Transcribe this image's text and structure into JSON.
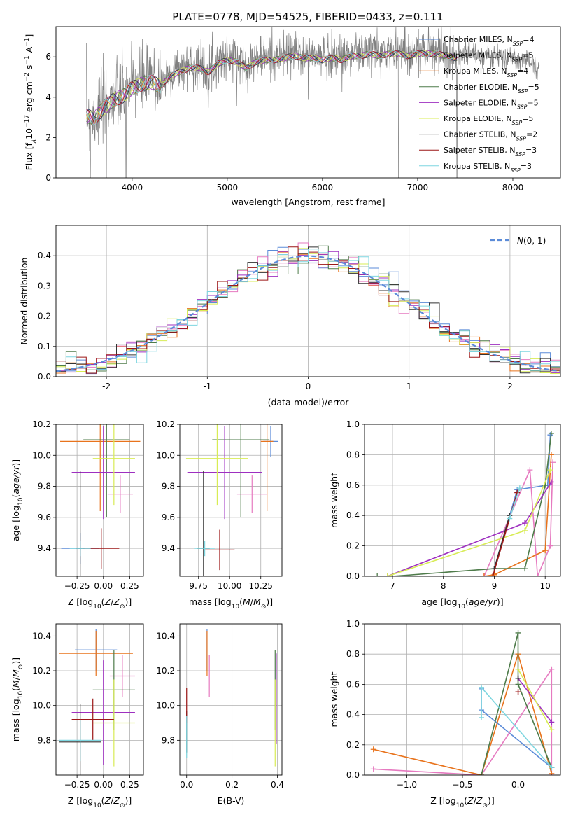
{
  "figure": {
    "title": "PLATE=0778, MJD=54525, FIBERID=0433, z=0.111"
  },
  "colors": {
    "Chabrier MILES": "#5b8bd8",
    "Salpeter MILES": "#e67ac0",
    "Kroupa MILES": "#e8731c",
    "Chabrier ELODIE": "#4e7b4a",
    "Salpeter ELODIE": "#9e2fc0",
    "Kroupa ELODIE": "#d8ec55",
    "Chabrier STELIB": "#333333",
    "Salpeter STELIB": "#9c1616",
    "Kroupa STELIB": "#7ed6e0",
    "data": "#808080",
    "normal": "#5b8bd8"
  },
  "chart_data": [
    {
      "id": "spectrum",
      "type": "line",
      "title": "PLATE=0778, MJD=54525, FIBERID=0433, z=0.111",
      "xlabel": "wavelength [Angstrom, rest frame]",
      "ylabel_parts": [
        "Flux [f",
        "λ",
        "10",
        "−17",
        " erg cm",
        "−2",
        " s",
        "−1",
        " A",
        "−1",
        "]"
      ],
      "xlim": [
        3200,
        8500
      ],
      "ylim": [
        0,
        7.5
      ],
      "xticks": [
        4000,
        5000,
        6000,
        7000,
        8000
      ],
      "yticks": [
        0,
        2,
        4,
        6
      ],
      "legend_position": "top-right",
      "legend": [
        {
          "label": "Chabrier MILES, N",
          "sub": "SSP",
          "eq": "=4",
          "model": "Chabrier MILES"
        },
        {
          "label": "Salpeter MILES, N",
          "sub": "SSP",
          "eq": "=5",
          "model": "Salpeter MILES"
        },
        {
          "label": "Kroupa MILES, N",
          "sub": "SSP",
          "eq": "=4",
          "model": "Kroupa MILES"
        },
        {
          "label": "Chabrier ELODIE, N",
          "sub": "SSP",
          "eq": "=5",
          "model": "Chabrier ELODIE"
        },
        {
          "label": "Salpeter ELODIE, N",
          "sub": "SSP",
          "eq": "=5",
          "model": "Salpeter ELODIE"
        },
        {
          "label": "Kroupa ELODIE, N",
          "sub": "SSP",
          "eq": "=5",
          "model": "Kroupa ELODIE"
        },
        {
          "label": "Chabrier STELIB, N",
          "sub": "SSP",
          "eq": "=2",
          "model": "Chabrier STELIB"
        },
        {
          "label": "Salpeter STELIB, N",
          "sub": "SSP",
          "eq": "=3",
          "model": "Salpeter STELIB"
        },
        {
          "label": "Kroupa STELIB, N",
          "sub": "SSP",
          "eq": "=3",
          "model": "Kroupa STELIB"
        }
      ],
      "continuum": [
        [
          3540,
          3.2
        ],
        [
          3600,
          3.1
        ],
        [
          3700,
          3.6
        ],
        [
          3800,
          4.0
        ],
        [
          3900,
          4.2
        ],
        [
          4000,
          4.6
        ],
        [
          4100,
          4.8
        ],
        [
          4200,
          4.9
        ],
        [
          4300,
          4.7
        ],
        [
          4400,
          5.2
        ],
        [
          4500,
          5.4
        ],
        [
          4600,
          5.6
        ],
        [
          4700,
          5.6
        ],
        [
          4800,
          5.4
        ],
        [
          4900,
          5.8
        ],
        [
          5000,
          6.0
        ],
        [
          5100,
          5.9
        ],
        [
          5200,
          5.6
        ],
        [
          5300,
          5.9
        ],
        [
          5400,
          6.0
        ],
        [
          5500,
          6.0
        ],
        [
          5600,
          6.1
        ],
        [
          5700,
          6.2
        ],
        [
          5800,
          6.1
        ],
        [
          5900,
          6.1
        ],
        [
          6000,
          6.0
        ],
        [
          6100,
          6.1
        ],
        [
          6200,
          6.0
        ],
        [
          6300,
          6.2
        ],
        [
          6400,
          6.2
        ],
        [
          6500,
          6.3
        ],
        [
          6600,
          6.2
        ],
        [
          6700,
          6.3
        ],
        [
          6800,
          6.3
        ],
        [
          6900,
          6.2
        ],
        [
          7000,
          6.3
        ],
        [
          7100,
          6.3
        ],
        [
          7200,
          6.3
        ],
        [
          7300,
          6.2
        ],
        [
          7400,
          6.1
        ],
        [
          7500,
          6.2
        ],
        [
          7600,
          6.1
        ],
        [
          7700,
          6.0
        ],
        [
          7800,
          6.0
        ],
        [
          7900,
          5.9
        ],
        [
          8000,
          6.0
        ],
        [
          8100,
          5.7
        ],
        [
          8200,
          5.8
        ],
        [
          8250,
          5.6
        ]
      ],
      "data_range": [
        3520,
        8280
      ],
      "model_range": [
        3520,
        7420
      ],
      "dips": [
        {
          "x": 3560,
          "y": 0.0
        },
        {
          "x": 3730,
          "y": 0.0
        },
        {
          "x": 3935,
          "y": 0.0
        },
        {
          "x": 6800,
          "y": 0.0
        },
        {
          "x": 7412,
          "y": 0.0
        }
      ]
    },
    {
      "id": "residuals",
      "type": "histogram",
      "xlabel": "(data-model)/error",
      "ylabel": "Normed distribution",
      "xlim": [
        -2.5,
        2.5
      ],
      "ylim": [
        0,
        0.5
      ],
      "xticks": [
        -2,
        -1,
        0,
        1,
        2
      ],
      "yticks": [
        0.0,
        0.1,
        0.2,
        0.3,
        0.4
      ],
      "grid": true,
      "legend_position": "top-right",
      "legend_label": "N(0, 1)",
      "bin_width": 0.1,
      "bin_start": -2.5
    },
    {
      "id": "age-vs-Z",
      "type": "errorbar",
      "xlabel": "Z [log10(Z/Z⊙)]",
      "ylabel": "age [log10(age/yr)]",
      "xlim": [
        -0.45,
        0.38
      ],
      "ylim": [
        9.22,
        10.2
      ],
      "xticks": [
        -0.25,
        0.0,
        0.25
      ],
      "xtick_labels": [
        "−0.25",
        "0.00",
        "0.25"
      ],
      "yticks": [
        9.4,
        9.6,
        9.8,
        10.0,
        10.2
      ],
      "grid": true,
      "points": [
        {
          "model": "Chabrier MILES",
          "x": -0.22,
          "xerr": 0.18,
          "y": 9.4,
          "yerr": 0.1
        },
        {
          "model": "Salpeter MILES",
          "x": 0.16,
          "xerr": 0.12,
          "y": 9.75,
          "yerr": 0.12
        },
        {
          "model": "Kroupa MILES",
          "x": -0.03,
          "xerr": 0.38,
          "y": 10.09,
          "yerr": 0.45
        },
        {
          "model": "Chabrier ELODIE",
          "x": 0.03,
          "xerr": 0.22,
          "y": 10.1,
          "yerr": 0.5
        },
        {
          "model": "Salpeter ELODIE",
          "x": 0.0,
          "xerr": 0.3,
          "y": 9.89,
          "yerr": 0.3
        },
        {
          "model": "Kroupa ELODIE",
          "x": 0.1,
          "xerr": 0.2,
          "y": 9.98,
          "yerr": 0.3
        },
        {
          "model": "Chabrier STELIB",
          "x": -0.22,
          "xerr": 0.04,
          "y": 9.4,
          "yerr": 0.5
        },
        {
          "model": "Salpeter STELIB",
          "x": -0.02,
          "xerr": 0.17,
          "y": 9.4,
          "yerr": 0.13
        },
        {
          "model": "Kroupa STELIB",
          "x": -0.22,
          "xerr": 0.1,
          "y": 9.4,
          "yerr": 0.05
        }
      ]
    },
    {
      "id": "age-vs-mass",
      "type": "errorbar",
      "xlabel": "mass [log10(M/M⊙)]",
      "xlim": [
        9.6,
        10.42
      ],
      "ylim": [
        9.22,
        10.2
      ],
      "xticks": [
        9.75,
        10.0,
        10.25
      ],
      "xtick_labels": [
        "9.75",
        "10.00",
        "10.25"
      ],
      "yticks": [
        9.4,
        9.6,
        9.8,
        10.0,
        10.2
      ],
      "grid": true,
      "points": [
        {
          "model": "Chabrier MILES",
          "x": 10.33,
          "xerr": 0.06,
          "y": 10.09,
          "yerr": 0.1
        },
        {
          "model": "Salpeter MILES",
          "x": 10.18,
          "xerr": 0.12,
          "y": 9.75,
          "yerr": 0.12
        },
        {
          "model": "Kroupa MILES",
          "x": 10.3,
          "xerr": 0.05,
          "y": 10.09,
          "yerr": 0.45
        },
        {
          "model": "Chabrier ELODIE",
          "x": 10.09,
          "xerr": 0.23,
          "y": 10.1,
          "yerr": 0.5
        },
        {
          "model": "Salpeter ELODIE",
          "x": 9.96,
          "xerr": 0.3,
          "y": 9.89,
          "yerr": 0.3
        },
        {
          "model": "Kroupa ELODIE",
          "x": 9.9,
          "xerr": 0.25,
          "y": 9.98,
          "yerr": 0.3
        },
        {
          "model": "Chabrier STELIB",
          "x": 9.79,
          "xerr": 0.05,
          "y": 9.4,
          "yerr": 0.5
        },
        {
          "model": "Salpeter STELIB",
          "x": 9.92,
          "xerr": 0.12,
          "y": 9.39,
          "yerr": 0.13
        },
        {
          "model": "Kroupa STELIB",
          "x": 9.8,
          "xerr": 0.08,
          "y": 9.4,
          "yerr": 0.05
        }
      ]
    },
    {
      "id": "mass-weight-vs-age",
      "type": "line",
      "xlabel": "age [log10(age/yr)]",
      "ylabel": "mass weight",
      "xlim": [
        6.45,
        10.3
      ],
      "ylim": [
        0.0,
        1.0
      ],
      "xticks": [
        7,
        8,
        9,
        10
      ],
      "yticks": [
        0.0,
        0.2,
        0.4,
        0.6,
        0.8,
        1.0
      ],
      "grid": true,
      "series": [
        {
          "model": "Chabrier MILES",
          "points": [
            [
              9.0,
              0.05
            ],
            [
              9.45,
              0.57
            ],
            [
              10.05,
              0.6
            ],
            [
              10.1,
              0.93
            ]
          ]
        },
        {
          "model": "Salpeter MILES",
          "points": [
            [
              8.8,
              0.0
            ],
            [
              9.7,
              0.7
            ],
            [
              9.85,
              0.0
            ],
            [
              10.1,
              0.2
            ],
            [
              10.15,
              0.75
            ]
          ]
        },
        {
          "model": "Kroupa MILES",
          "points": [
            [
              8.8,
              0.0
            ],
            [
              9.0,
              0.01
            ],
            [
              10.0,
              0.17
            ],
            [
              10.12,
              0.8
            ]
          ]
        },
        {
          "model": "Chabrier ELODIE",
          "points": [
            [
              6.7,
              0.0
            ],
            [
              7.0,
              0.0
            ],
            [
              9.0,
              0.05
            ],
            [
              9.6,
              0.05
            ],
            [
              10.0,
              0.6
            ],
            [
              10.12,
              0.94
            ]
          ]
        },
        {
          "model": "Salpeter ELODIE",
          "points": [
            [
              6.9,
              0.0
            ],
            [
              9.6,
              0.35
            ],
            [
              10.12,
              0.62
            ]
          ]
        },
        {
          "model": "Kroupa ELODIE",
          "points": [
            [
              6.9,
              0.0
            ],
            [
              9.6,
              0.3
            ],
            [
              10.1,
              0.7
            ]
          ]
        },
        {
          "model": "Chabrier STELIB",
          "points": [
            [
              9.0,
              0.05
            ],
            [
              9.3,
              0.4
            ]
          ]
        },
        {
          "model": "Salpeter STELIB",
          "points": [
            [
              8.97,
              0.0
            ],
            [
              9.45,
              0.55
            ]
          ]
        },
        {
          "model": "Kroupa STELIB",
          "points": [
            [
              9.3,
              0.38
            ],
            [
              9.5,
              0.58
            ]
          ]
        }
      ]
    },
    {
      "id": "mass-vs-Z",
      "type": "errorbar",
      "xlabel": "Z [log10(Z/Z⊙)]",
      "ylabel": "mass [log10(M/M⊙)]",
      "xlim": [
        -0.45,
        0.38
      ],
      "ylim": [
        9.6,
        10.47
      ],
      "xticks": [
        -0.25,
        0.0,
        0.25
      ],
      "xtick_labels": [
        "−0.25",
        "0.00",
        "0.25"
      ],
      "yticks": [
        9.8,
        10.0,
        10.2,
        10.4
      ],
      "grid": true,
      "points": [
        {
          "model": "Chabrier MILES",
          "x": -0.07,
          "xerr": 0.2,
          "y": 10.32,
          "yerr": 0.12
        },
        {
          "model": "Salpeter MILES",
          "x": 0.18,
          "xerr": 0.12,
          "y": 10.17,
          "yerr": 0.12
        },
        {
          "model": "Kroupa MILES",
          "x": -0.07,
          "xerr": 0.35,
          "y": 10.3,
          "yerr": 0.13
        },
        {
          "model": "Chabrier ELODIE",
          "x": 0.1,
          "xerr": 0.2,
          "y": 10.09,
          "yerr": 0.23
        },
        {
          "model": "Salpeter ELODIE",
          "x": 0.0,
          "xerr": 0.3,
          "y": 9.96,
          "yerr": 0.3
        },
        {
          "model": "Kroupa ELODIE",
          "x": 0.1,
          "xerr": 0.2,
          "y": 9.9,
          "yerr": 0.25
        },
        {
          "model": "Chabrier STELIB",
          "x": -0.22,
          "xerr": 0.2,
          "y": 9.79,
          "yerr": 0.22
        },
        {
          "model": "Salpeter STELIB",
          "x": -0.1,
          "xerr": 0.2,
          "y": 9.92,
          "yerr": 0.12
        },
        {
          "model": "Kroupa STELIB",
          "x": -0.22,
          "xerr": 0.2,
          "y": 9.8,
          "yerr": 0.12
        }
      ]
    },
    {
      "id": "mass-vs-EBV",
      "type": "errorbar",
      "xlabel": "E(B-V)",
      "xlim": [
        -0.03,
        0.42
      ],
      "ylim": [
        9.6,
        10.47
      ],
      "xticks": [
        0.0,
        0.2,
        0.4
      ],
      "xtick_labels": [
        "0.0",
        "0.2",
        "0.4"
      ],
      "yticks": [
        9.8,
        10.0,
        10.2,
        10.4
      ],
      "grid": true,
      "points": [
        {
          "model": "Chabrier MILES",
          "x": 0.09,
          "xerr": 0.0,
          "y": 10.32,
          "yerr": 0.12
        },
        {
          "model": "Salpeter MILES",
          "x": 0.1,
          "xerr": 0.0,
          "y": 10.17,
          "yerr": 0.12
        },
        {
          "model": "Kroupa MILES",
          "x": 0.09,
          "xerr": 0.0,
          "y": 10.3,
          "yerr": 0.13
        },
        {
          "model": "Chabrier ELODIE",
          "x": 0.39,
          "xerr": 0.0,
          "y": 10.09,
          "yerr": 0.23
        },
        {
          "model": "Salpeter ELODIE",
          "x": 0.395,
          "xerr": 0.0,
          "y": 10.04,
          "yerr": 0.26
        },
        {
          "model": "Kroupa ELODIE",
          "x": 0.39,
          "xerr": 0.0,
          "y": 9.9,
          "yerr": 0.25
        },
        {
          "model": "Chabrier STELIB",
          "x": 0.0,
          "xerr": 0.0,
          "y": 9.85,
          "yerr": 0.12
        },
        {
          "model": "Salpeter STELIB",
          "x": 0.0,
          "xerr": 0.0,
          "y": 10.0,
          "yerr": 0.1
        },
        {
          "model": "Kroupa STELIB",
          "x": 0.0,
          "xerr": 0.0,
          "y": 9.82,
          "yerr": 0.12
        }
      ]
    },
    {
      "id": "mass-weight-vs-Z",
      "type": "line",
      "xlabel": "Z [log10(Z/Z⊙)]",
      "ylabel": "mass weight",
      "xlim": [
        -1.38,
        0.38
      ],
      "ylim": [
        0.0,
        1.0
      ],
      "xticks": [
        -1.0,
        -0.5,
        0.0
      ],
      "xtick_labels": [
        "−1.0",
        "−0.5",
        "0.0"
      ],
      "yticks": [
        0.0,
        0.2,
        0.4,
        0.6,
        0.8,
        1.0
      ],
      "grid": true,
      "series": [
        {
          "model": "Chabrier MILES",
          "points": [
            [
              -0.33,
              0.57
            ],
            [
              -0.33,
              0.43
            ],
            [
              0.3,
              0.05
            ]
          ]
        },
        {
          "model": "Salpeter MILES",
          "points": [
            [
              -1.3,
              0.04
            ],
            [
              -0.33,
              0.0
            ],
            [
              0.3,
              0.7
            ],
            [
              0.3,
              0.0
            ]
          ]
        },
        {
          "model": "Kroupa MILES",
          "points": [
            [
              -1.3,
              0.17
            ],
            [
              -0.33,
              0.0
            ],
            [
              0.0,
              0.8
            ],
            [
              0.3,
              0.01
            ]
          ]
        },
        {
          "model": "Chabrier ELODIE",
          "points": [
            [
              -0.33,
              0.0
            ],
            [
              0.0,
              0.94
            ],
            [
              0.0,
              0.6
            ],
            [
              0.3,
              0.05
            ]
          ]
        },
        {
          "model": "Salpeter ELODIE",
          "points": [
            [
              0.0,
              0.64
            ],
            [
              0.3,
              0.35
            ]
          ]
        },
        {
          "model": "Kroupa ELODIE",
          "points": [
            [
              0.0,
              0.7
            ],
            [
              0.3,
              0.3
            ]
          ]
        },
        {
          "model": "Chabrier STELIB",
          "points": [
            [
              0.0,
              0.64
            ],
            [
              0.0,
              0.64
            ]
          ]
        },
        {
          "model": "Salpeter STELIB",
          "points": [
            [
              0.0,
              0.55
            ],
            [
              0.0,
              0.55
            ]
          ]
        },
        {
          "model": "Kroupa STELIB",
          "points": [
            [
              -0.33,
              0.38
            ],
            [
              -0.33,
              0.58
            ],
            [
              0.3,
              0.05
            ]
          ]
        }
      ]
    }
  ]
}
